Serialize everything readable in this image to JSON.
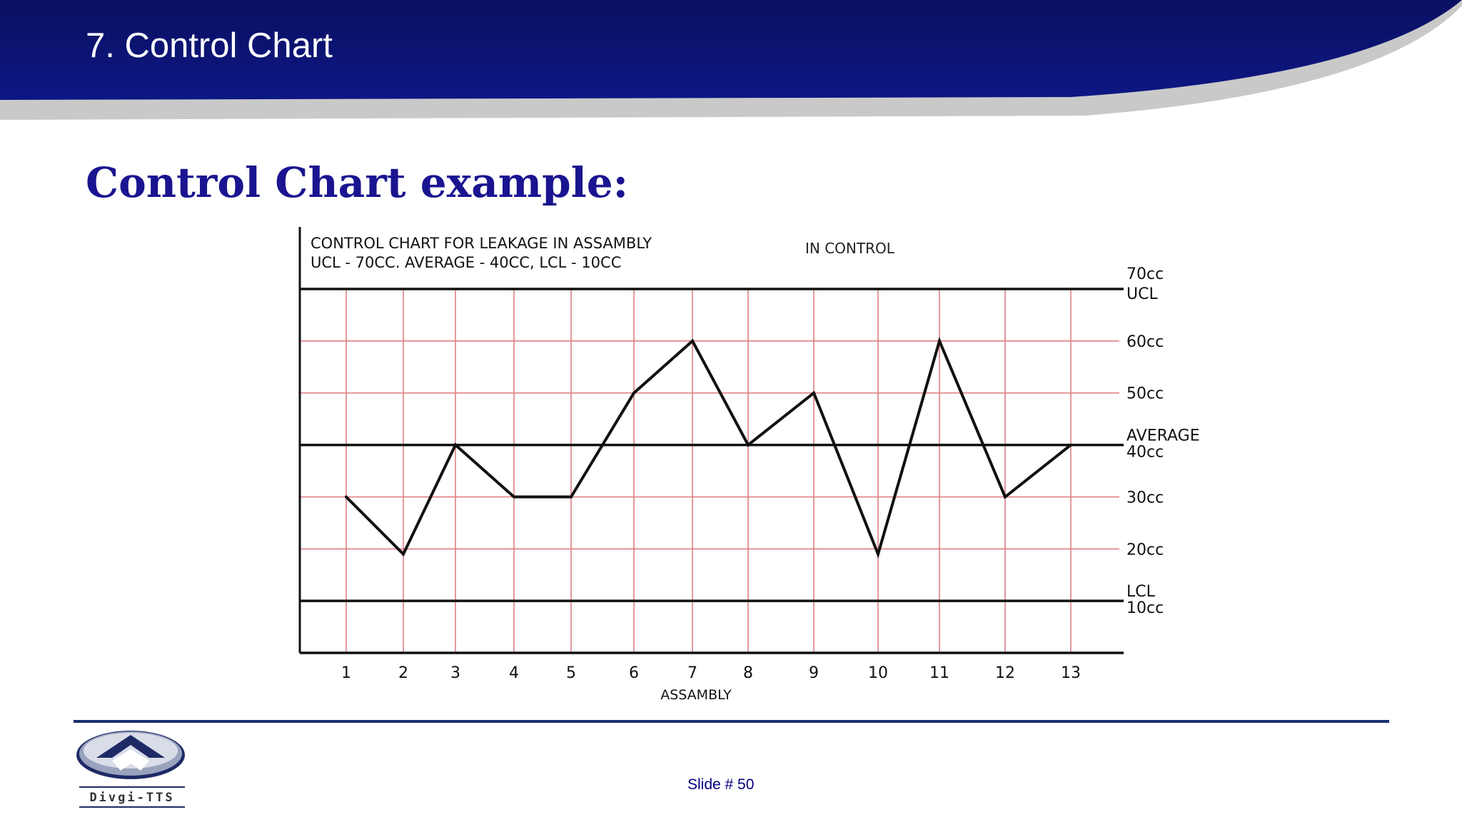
{
  "slide": {
    "title": "7. Control Chart",
    "subtitle": "Control Chart example:",
    "number_label": "Slide # 50"
  },
  "logo": {
    "text": "Divgi-TTS"
  },
  "colors": {
    "header_navy": "#0b1270",
    "subtitle_blue": "#1a1490",
    "grid_pink": "#e07f86",
    "footer_rule": "#1c2f6e"
  },
  "chart_data": {
    "type": "line",
    "title_line1": "CONTROL CHART FOR LEAKAGE IN ASSAMBLY",
    "title_line2": "UCL - 70CC.  AVERAGE - 40CC,  LCL - 10CC",
    "status_label": "IN CONTROL",
    "xlabel": "ASSAMBLY",
    "categories": [
      "1",
      "2",
      "3",
      "4",
      "5",
      "6",
      "7",
      "8",
      "9",
      "10",
      "11",
      "12",
      "13"
    ],
    "values": [
      30,
      19,
      40,
      30,
      30,
      50,
      60,
      40,
      50,
      19,
      60,
      30,
      40
    ],
    "reference_lines": [
      {
        "name": "UCL",
        "value": 70
      },
      {
        "name": "AVERAGE",
        "value": 40
      },
      {
        "name": "LCL",
        "value": 10
      }
    ],
    "gridlines_y": [
      60,
      50,
      30,
      20
    ],
    "right_labels": [
      {
        "value": 70,
        "lines": [
          "70cc",
          "UCL"
        ]
      },
      {
        "value": 60,
        "lines": [
          "60cc"
        ]
      },
      {
        "value": 50,
        "lines": [
          "50cc"
        ]
      },
      {
        "value": 40,
        "lines": [
          "AVERAGE",
          "40cc"
        ]
      },
      {
        "value": 30,
        "lines": [
          "30cc"
        ]
      },
      {
        "value": 20,
        "lines": [
          "20cc"
        ]
      },
      {
        "value": 10,
        "lines": [
          "LCL",
          "10cc"
        ]
      }
    ],
    "ylim": [
      0,
      70
    ],
    "grid": true
  }
}
